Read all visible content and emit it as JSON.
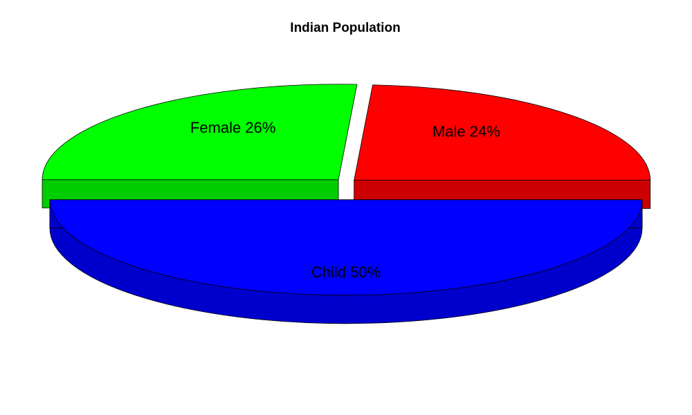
{
  "chart_data": {
    "type": "pie",
    "title": "Indian Population",
    "categories": [
      "Male",
      "Female",
      "Child"
    ],
    "values": [
      24,
      26,
      50
    ],
    "labels": [
      "Male 24%",
      "Female 26%",
      "Child 50%"
    ],
    "colors": [
      "#ff0000",
      "#00ff00",
      "#0000ff"
    ],
    "side_colors": [
      "#cc0000",
      "#00cc00",
      "#0000cc"
    ],
    "exploded": true,
    "three_d": true
  }
}
